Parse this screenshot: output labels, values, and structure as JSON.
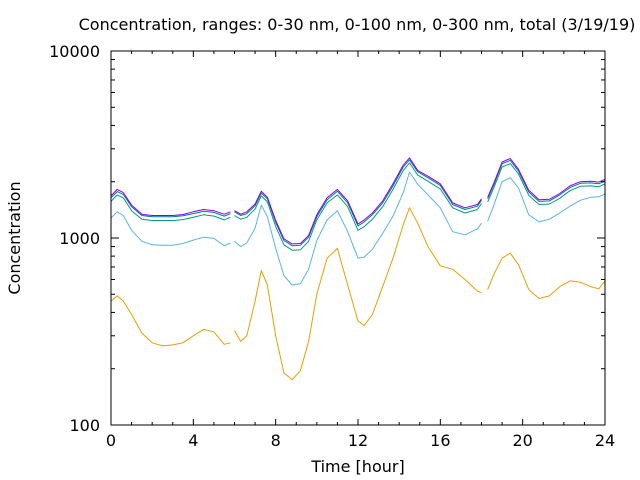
{
  "chart_data": {
    "type": "line",
    "title": "Concentration, ranges: 0-30 nm, 0-100 nm, 0-300 nm, total (3/19/19)",
    "xlabel": "Time [hour]",
    "ylabel": "Concentration",
    "xlim": [
      0,
      24
    ],
    "ylim": [
      100,
      10000
    ],
    "yscale": "log",
    "grid": false,
    "legend": "none",
    "xticks": [
      "0",
      "4",
      "8",
      "12",
      "16",
      "20",
      "24"
    ],
    "xtick_values": [
      0,
      4,
      8,
      12,
      16,
      20,
      24
    ],
    "yticks": [
      "100",
      "1000",
      "10000"
    ],
    "ytick_values": [
      100,
      1000,
      10000
    ],
    "series": [
      {
        "color": "#e69f00",
        "x": [
          0,
          0.3,
          0.6,
          1.0,
          1.5,
          2.0,
          2.5,
          3.0,
          3.5,
          4.0,
          4.5,
          5.0,
          5.5,
          5.8,
          null,
          6.0,
          6.3,
          6.6,
          7.0,
          7.3,
          7.6,
          8.0,
          8.4,
          8.8,
          9.2,
          9.6,
          10.0,
          10.5,
          11.0,
          11.5,
          12.0,
          12.3,
          12.7,
          13.2,
          13.7,
          14.2,
          14.5,
          14.9,
          15.4,
          16.0,
          16.6,
          17.2,
          17.8,
          18.0,
          null,
          18.3,
          18.6,
          19.0,
          19.4,
          19.8,
          20.3,
          20.8,
          21.3,
          21.8,
          22.3,
          22.8,
          23.3,
          23.7,
          24.0
        ],
        "values": [
          460,
          490,
          460,
          390,
          310,
          275,
          265,
          268,
          275,
          300,
          325,
          315,
          270,
          275,
          null,
          320,
          280,
          300,
          460,
          670,
          560,
          300,
          190,
          175,
          195,
          280,
          500,
          780,
          880,
          560,
          360,
          340,
          390,
          550,
          780,
          1180,
          1450,
          1200,
          900,
          710,
          680,
          600,
          520,
          510,
          null,
          530,
          640,
          780,
          830,
          720,
          530,
          475,
          490,
          550,
          590,
          580,
          550,
          535,
          590
        ]
      },
      {
        "color": "#56b4e9",
        "x": [
          0,
          0.3,
          0.6,
          1.0,
          1.5,
          2.0,
          2.5,
          3.0,
          3.5,
          4.0,
          4.5,
          5.0,
          5.5,
          5.8,
          null,
          6.0,
          6.3,
          6.6,
          7.0,
          7.3,
          7.6,
          8.0,
          8.4,
          8.8,
          9.2,
          9.6,
          10.0,
          10.5,
          11.0,
          11.5,
          12.0,
          12.3,
          12.7,
          13.2,
          13.7,
          14.2,
          14.5,
          14.9,
          15.4,
          16.0,
          16.6,
          17.2,
          17.8,
          18.0,
          null,
          18.3,
          18.6,
          19.0,
          19.4,
          19.8,
          20.3,
          20.8,
          21.3,
          21.8,
          22.3,
          22.8,
          23.3,
          23.7,
          24.0
        ],
        "values": [
          1280,
          1380,
          1320,
          1100,
          960,
          920,
          915,
          915,
          935,
          975,
          1010,
          995,
          910,
          940,
          null,
          960,
          900,
          940,
          1130,
          1500,
          1300,
          880,
          630,
          560,
          570,
          680,
          970,
          1250,
          1400,
          1080,
          780,
          790,
          870,
          1060,
          1310,
          1750,
          2250,
          1940,
          1700,
          1450,
          1080,
          1040,
          1120,
          1200,
          null,
          1230,
          1500,
          2000,
          2100,
          1850,
          1330,
          1220,
          1260,
          1360,
          1480,
          1590,
          1650,
          1660,
          1720
        ]
      },
      {
        "color": "#009e73",
        "x": [
          0,
          0.3,
          0.6,
          1.0,
          1.5,
          2.0,
          2.5,
          3.0,
          3.5,
          4.0,
          4.5,
          5.0,
          5.5,
          5.8,
          null,
          6.0,
          6.3,
          6.6,
          7.0,
          7.3,
          7.6,
          8.0,
          8.4,
          8.8,
          9.2,
          9.6,
          10.0,
          10.5,
          11.0,
          11.5,
          12.0,
          12.3,
          12.7,
          13.2,
          13.7,
          14.2,
          14.5,
          14.9,
          15.4,
          16.0,
          16.6,
          17.2,
          17.8,
          18.0,
          null,
          18.3,
          18.6,
          19.0,
          19.4,
          19.8,
          20.3,
          20.8,
          21.3,
          21.8,
          22.3,
          22.8,
          23.3,
          23.7,
          24.0
        ],
        "values": [
          1570,
          1700,
          1640,
          1400,
          1260,
          1240,
          1240,
          1240,
          1255,
          1290,
          1330,
          1310,
          1250,
          1290,
          null,
          1320,
          1260,
          1290,
          1430,
          1680,
          1560,
          1150,
          920,
          860,
          865,
          960,
          1250,
          1540,
          1700,
          1470,
          1100,
          1150,
          1260,
          1470,
          1820,
          2300,
          2520,
          2170,
          2010,
          1830,
          1450,
          1360,
          1420,
          1530,
          null,
          1560,
          1860,
          2400,
          2500,
          2200,
          1690,
          1510,
          1520,
          1630,
          1790,
          1890,
          1900,
          1880,
          1950
        ]
      },
      {
        "color": "#0072b2",
        "x": [
          0,
          0.3,
          0.6,
          1.0,
          1.5,
          2.0,
          2.5,
          3.0,
          3.5,
          4.0,
          4.5,
          5.0,
          5.5,
          5.8,
          null,
          6.0,
          6.3,
          6.6,
          7.0,
          7.3,
          7.6,
          8.0,
          8.4,
          8.8,
          9.2,
          9.6,
          10.0,
          10.5,
          11.0,
          11.5,
          12.0,
          12.3,
          12.7,
          13.2,
          13.7,
          14.2,
          14.5,
          14.9,
          15.4,
          16.0,
          16.6,
          17.2,
          17.8,
          18.0,
          null,
          18.3,
          18.6,
          19.0,
          19.4,
          19.8,
          20.3,
          20.8,
          21.3,
          21.8,
          22.3,
          22.8,
          23.3,
          23.7,
          24.0
        ],
        "values": [
          1640,
          1770,
          1710,
          1470,
          1320,
          1300,
          1300,
          1300,
          1315,
          1350,
          1390,
          1370,
          1310,
          1350,
          null,
          1380,
          1320,
          1350,
          1490,
          1740,
          1620,
          1210,
          970,
          910,
          915,
          1010,
          1300,
          1600,
          1780,
          1540,
          1160,
          1220,
          1330,
          1540,
          1900,
          2400,
          2620,
          2260,
          2100,
          1910,
          1510,
          1420,
          1480,
          1590,
          null,
          1620,
          1930,
          2500,
          2600,
          2280,
          1760,
          1570,
          1580,
          1700,
          1860,
          1960,
          1970,
          1950,
          2020
        ]
      },
      {
        "color": "#9400d3",
        "x": [
          0,
          0.3,
          0.6,
          1.0,
          1.5,
          2.0,
          2.5,
          3.0,
          3.5,
          4.0,
          4.5,
          5.0,
          5.5,
          5.8,
          null,
          6.0,
          6.3,
          6.6,
          7.0,
          7.3,
          7.6,
          8.0,
          8.4,
          8.8,
          9.2,
          9.6,
          10.0,
          10.5,
          11.0,
          11.5,
          12.0,
          12.3,
          12.7,
          13.2,
          13.7,
          14.2,
          14.5,
          14.9,
          15.4,
          16.0,
          16.6,
          17.2,
          17.8,
          18.0,
          null,
          18.3,
          18.6,
          19.0,
          19.4,
          19.8,
          20.3,
          20.8,
          21.3,
          21.8,
          22.3,
          22.8,
          23.3,
          23.7,
          24.0
        ],
        "values": [
          1680,
          1820,
          1750,
          1500,
          1340,
          1320,
          1320,
          1320,
          1335,
          1380,
          1420,
          1400,
          1340,
          1380,
          null,
          1400,
          1340,
          1380,
          1520,
          1780,
          1650,
          1240,
          990,
          930,
          935,
          1030,
          1330,
          1640,
          1820,
          1580,
          1190,
          1250,
          1360,
          1580,
          1950,
          2460,
          2680,
          2300,
          2140,
          1950,
          1540,
          1450,
          1510,
          1620,
          null,
          1650,
          1970,
          2550,
          2660,
          2330,
          1800,
          1600,
          1610,
          1730,
          1900,
          2000,
          2010,
          1990,
          2060
        ]
      }
    ]
  }
}
